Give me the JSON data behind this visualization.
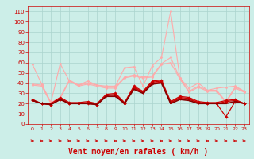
{
  "x": [
    0,
    1,
    2,
    3,
    4,
    5,
    6,
    7,
    8,
    9,
    10,
    11,
    12,
    13,
    14,
    15,
    16,
    17,
    18,
    19,
    20,
    21,
    22,
    23
  ],
  "background_color": "#cceee8",
  "grid_color": "#aad4ce",
  "xlabel": "Vent moyen/en rafales ( km/h )",
  "xlabel_color": "#cc0000",
  "xlabel_fontsize": 7,
  "tick_color": "#cc0000",
  "ylim": [
    0,
    115
  ],
  "yticks": [
    0,
    10,
    20,
    30,
    40,
    50,
    60,
    70,
    80,
    90,
    100,
    110
  ],
  "series": [
    {
      "name": "rafales_max",
      "color": "#ffaaaa",
      "linewidth": 0.8,
      "marker": "D",
      "markersize": 1.5,
      "values": [
        58,
        39,
        21,
        59,
        42,
        38,
        42,
        38,
        37,
        37,
        55,
        56,
        37,
        57,
        65,
        110,
        45,
        35,
        40,
        33,
        35,
        36,
        37,
        32
      ]
    },
    {
      "name": "rafales_mid1",
      "color": "#ffaaaa",
      "linewidth": 0.8,
      "marker": "D",
      "markersize": 1.5,
      "values": [
        39,
        38,
        21,
        26,
        43,
        38,
        40,
        38,
        36,
        36,
        46,
        48,
        46,
        47,
        59,
        65,
        45,
        32,
        37,
        33,
        33,
        22,
        36,
        32
      ]
    },
    {
      "name": "rafales_mid2",
      "color": "#ffaaaa",
      "linewidth": 0.8,
      "marker": "D",
      "markersize": 1.5,
      "values": [
        38,
        37,
        20,
        25,
        42,
        37,
        39,
        37,
        35,
        35,
        45,
        47,
        45,
        46,
        58,
        60,
        44,
        31,
        36,
        32,
        32,
        21,
        35,
        31
      ]
    },
    {
      "name": "vent_max",
      "color": "#cc0000",
      "linewidth": 0.9,
      "marker": "D",
      "markersize": 1.8,
      "values": [
        24,
        20,
        20,
        26,
        21,
        21,
        22,
        20,
        29,
        30,
        21,
        37,
        32,
        42,
        43,
        22,
        27,
        26,
        22,
        21,
        21,
        23,
        24,
        20
      ]
    },
    {
      "name": "vent_mean1",
      "color": "#cc0000",
      "linewidth": 0.9,
      "marker": "D",
      "markersize": 1.8,
      "values": [
        23,
        20,
        19,
        25,
        20,
        20,
        21,
        19,
        28,
        29,
        20,
        36,
        31,
        41,
        42,
        21,
        26,
        25,
        21,
        20,
        20,
        22,
        23,
        20
      ]
    },
    {
      "name": "vent_mean2",
      "color": "#cc0000",
      "linewidth": 0.9,
      "marker": "D",
      "markersize": 1.8,
      "values": [
        23,
        20,
        19,
        24,
        20,
        20,
        20,
        19,
        28,
        28,
        20,
        35,
        31,
        40,
        41,
        21,
        25,
        24,
        21,
        20,
        20,
        7,
        22,
        20
      ]
    },
    {
      "name": "vent_min",
      "color": "#880000",
      "linewidth": 1.2,
      "marker": null,
      "markersize": 0,
      "values": [
        23,
        20,
        19,
        24,
        20,
        20,
        20,
        19,
        27,
        27,
        20,
        34,
        30,
        39,
        40,
        20,
        24,
        23,
        20,
        20,
        20,
        20,
        22,
        20
      ]
    }
  ],
  "wind_arrows_color": "#cc0000",
  "figsize": [
    3.2,
    2.0
  ],
  "dpi": 100
}
